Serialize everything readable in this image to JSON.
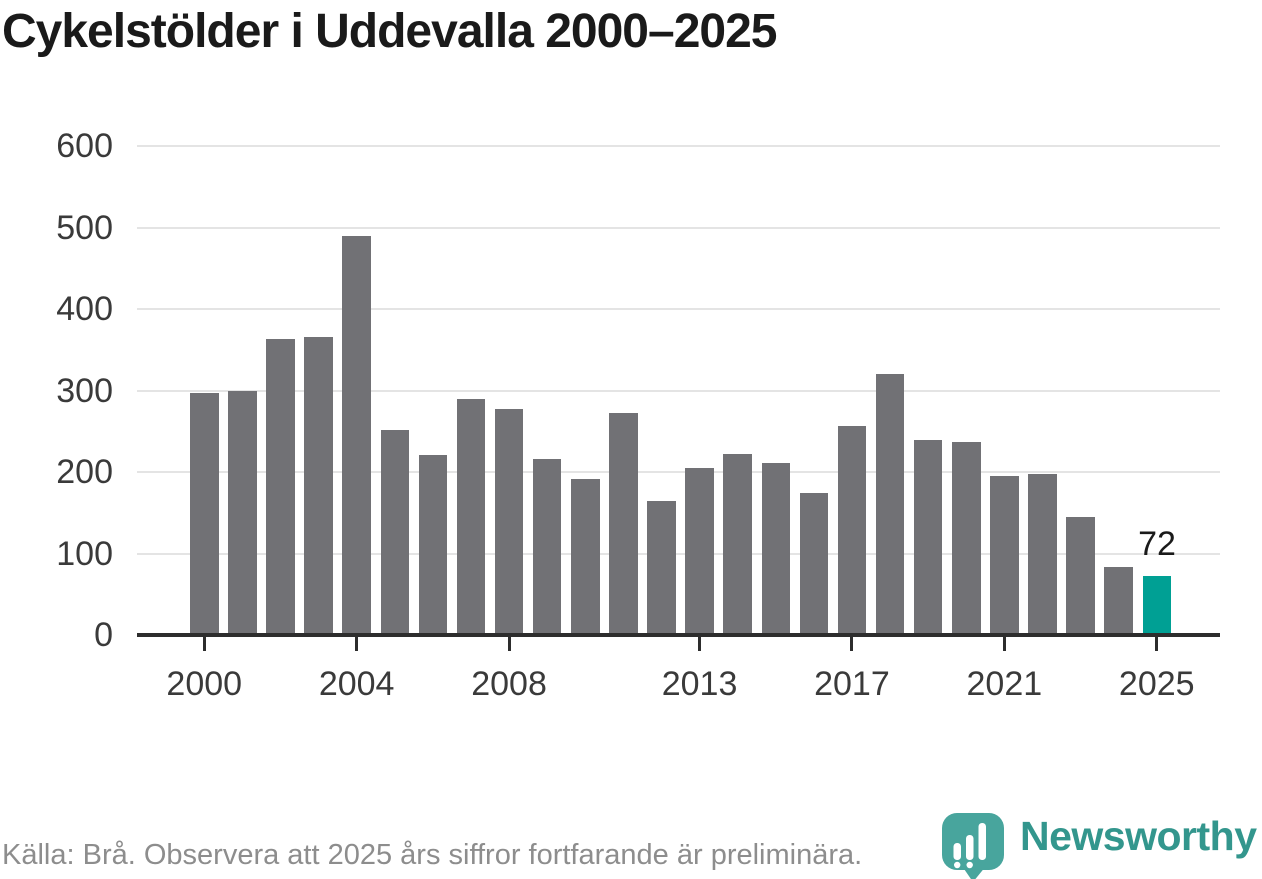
{
  "title": "Cykelstölder i Uddevalla 2000–2025",
  "chart_data": {
    "type": "bar",
    "title": "Cykelstölder i Uddevalla 2000–2025",
    "x": [
      2000,
      2001,
      2002,
      2003,
      2004,
      2005,
      2006,
      2007,
      2008,
      2009,
      2010,
      2011,
      2012,
      2013,
      2014,
      2015,
      2016,
      2017,
      2018,
      2019,
      2020,
      2021,
      2022,
      2023,
      2024,
      2025
    ],
    "values": [
      297,
      300,
      363,
      366,
      490,
      252,
      221,
      290,
      277,
      216,
      191,
      272,
      165,
      205,
      222,
      211,
      174,
      256,
      320,
      239,
      237,
      195,
      198,
      145,
      84,
      72
    ],
    "highlight_year": 2025,
    "highlight_label": "72",
    "xlabel": "",
    "ylabel": "",
    "ylim": [
      0,
      600
    ],
    "yticks": [
      0,
      100,
      200,
      300,
      400,
      500,
      600
    ],
    "xticks": [
      2000,
      2004,
      2008,
      2013,
      2017,
      2021,
      2025
    ],
    "grid": "horizontal",
    "legend": "none",
    "bar_color": "#717175",
    "highlight_color": "#00a094"
  },
  "footer": {
    "source_text": "Källa: Brå. Observera att 2025 års siffror fortfarande är preliminära."
  },
  "branding": {
    "logo_text": "Newsworthy",
    "logo_icon": "speech-bubble-bar-chart-icon",
    "icon_color": "#48a59d",
    "text_color": "#33968d"
  }
}
